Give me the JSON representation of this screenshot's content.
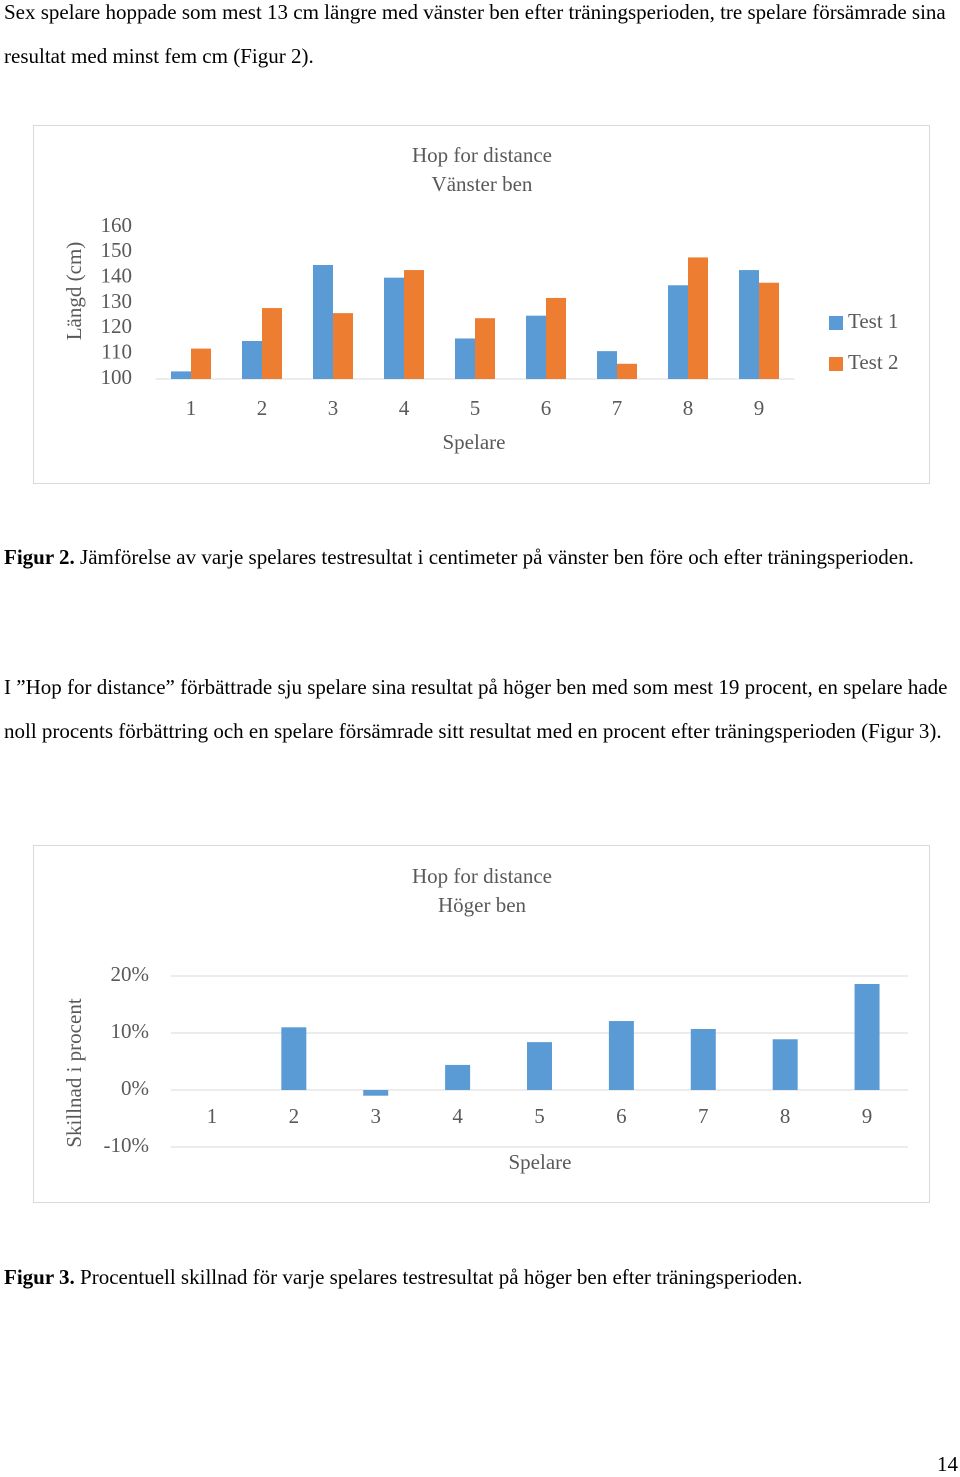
{
  "paragraphs": [
    "Sex spelare hoppade som mest 13 cm längre med vänster ben efter träningsperioden, tre spelare försämrade sina resultat med minst fem cm (Figur 2).",
    "I ”Hop for distance” förbättrade sju spelare sina resultat på höger ben med som mest 19 procent, en spelare hade noll procents förbättring och en spelare försämrade sitt resultat med en procent efter träningsperioden (Figur 3)."
  ],
  "figures": [
    {
      "label": "Figur 2.",
      "text": "Jämförelse av varje spelares testresultat i centimeter på vänster ben före och efter träningsperioden."
    },
    {
      "label": "Figur 3.",
      "text": "Procentuell skillnad för varje spelares testresultat på höger ben efter träningsperioden."
    }
  ],
  "page_number": "14",
  "chart_data": [
    {
      "type": "bar",
      "title": "Hop for distance",
      "subtitle": "Vänster ben",
      "x_label": "Spelare",
      "y_label": "Längd (cm)",
      "categories": [
        "1",
        "2",
        "3",
        "4",
        "5",
        "6",
        "7",
        "8",
        "9"
      ],
      "series": [
        {
          "name": "Test 1",
          "color": "#5b9bd5",
          "values": [
            103,
            115,
            145,
            140,
            116,
            125,
            111,
            137,
            143
          ]
        },
        {
          "name": "Test 2",
          "color": "#ed7d31",
          "values": [
            112,
            128,
            126,
            143,
            124,
            132,
            106,
            148,
            138
          ]
        }
      ],
      "ylim": [
        100,
        160
      ],
      "yticks": [
        100,
        110,
        120,
        130,
        140,
        150,
        160
      ],
      "grid": false,
      "legend": "right"
    },
    {
      "type": "bar",
      "title": "Hop for distance",
      "subtitle": "Höger ben",
      "x_label": "Spelare",
      "y_label": "Skillnad i procent",
      "categories": [
        "1",
        "2",
        "3",
        "4",
        "5",
        "6",
        "7",
        "8",
        "9"
      ],
      "values": [
        0,
        11,
        -1,
        4.4,
        8.4,
        12.1,
        10.7,
        8.9,
        18.6
      ],
      "color": "#5b9bd5",
      "ylim": [
        -10,
        20
      ],
      "yticks": [
        {
          "value": -10,
          "label": "-10%"
        },
        {
          "value": 0,
          "label": "0%"
        },
        {
          "value": 10,
          "label": "10%"
        },
        {
          "value": 20,
          "label": "20%"
        }
      ],
      "grid": true
    }
  ]
}
